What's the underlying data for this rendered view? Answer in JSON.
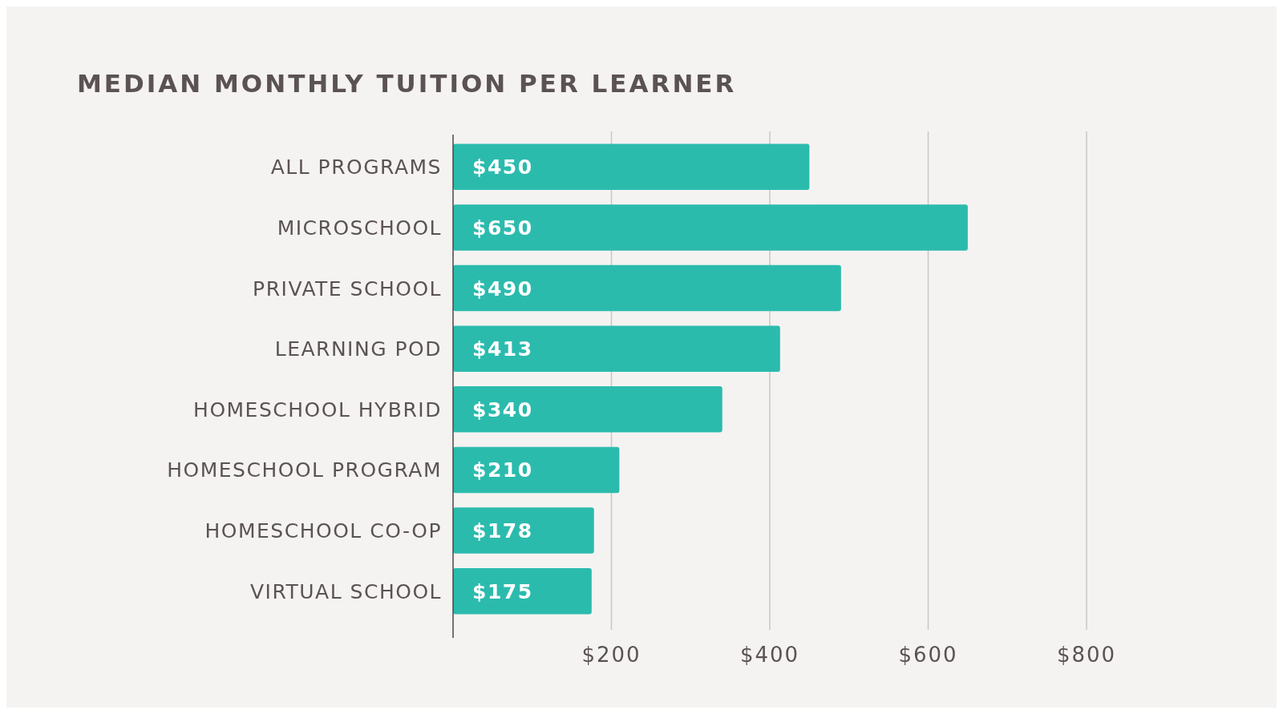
{
  "chart_data": {
    "type": "bar",
    "orientation": "horizontal",
    "title": "MEDIAN MONTHLY TUITION PER LEARNER",
    "categories": [
      "ALL PROGRAMS",
      "MICROSCHOOL",
      "PRIVATE SCHOOL",
      "LEARNING POD",
      "HOMESCHOOL HYBRID",
      "HOMESCHOOL PROGRAM",
      "HOMESCHOOL CO-OP",
      "VIRTUAL SCHOOL"
    ],
    "values": [
      450,
      650,
      490,
      413,
      340,
      210,
      178,
      175
    ],
    "value_labels": [
      "$450",
      "$650",
      "$490",
      "$413",
      "$340",
      "$210",
      "$178",
      "$175"
    ],
    "color": "#2bbbad",
    "xlim": [
      0,
      800
    ],
    "xticks": [
      {
        "value": 200,
        "label": "$200"
      },
      {
        "value": 400,
        "label": "$400"
      },
      {
        "value": 600,
        "label": "$600"
      },
      {
        "value": 800,
        "label": "$800"
      }
    ],
    "grid": "x"
  }
}
